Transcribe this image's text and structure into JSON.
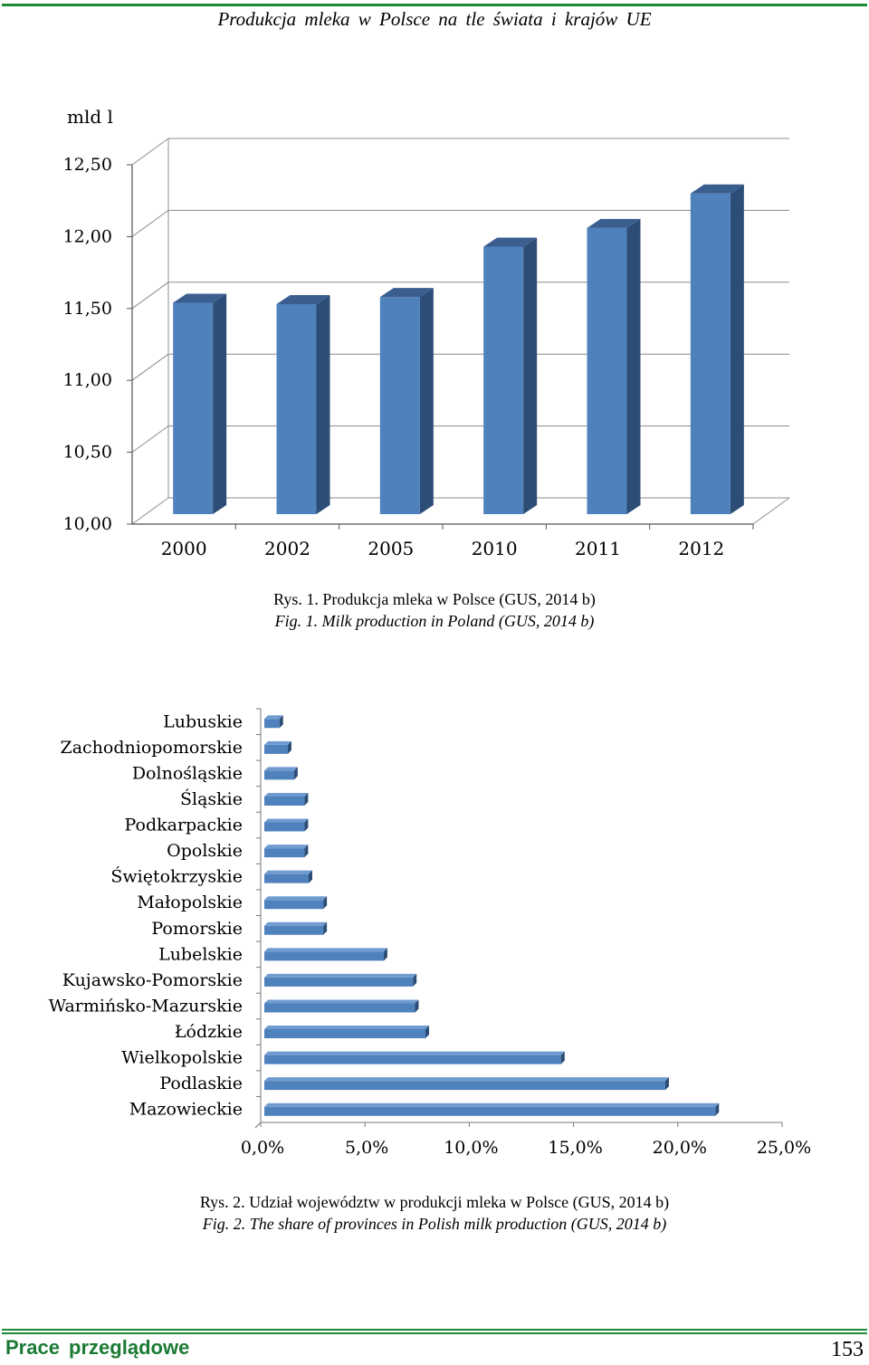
{
  "page": {
    "header": "Produkcja mleka w Polsce na tle świata i krajów UE",
    "footer_left": "Prace przeglądowe",
    "page_number": "153",
    "accent_color": "#1f8a3a"
  },
  "figures": {
    "fig1": {
      "caption_pl": "Rys. 1. Produkcja mleka w Polsce (GUS, 2014 b)",
      "caption_en": "Fig. 1. Milk production in Poland (GUS, 2014 b)"
    },
    "fig2": {
      "caption_pl": "Rys. 2. Udział województw w produkcji mleka w Polsce (GUS, 2014 b)",
      "caption_en": "Fig. 2. The share of provinces in Polish milk production (GUS, 2014 b)"
    }
  },
  "chart_data": [
    {
      "type": "bar",
      "orientation": "vertical",
      "style": "3d",
      "ylabel": "mld l",
      "categories": [
        "2000",
        "2002",
        "2005",
        "2010",
        "2011",
        "2012"
      ],
      "values": [
        11.54,
        11.53,
        11.58,
        11.93,
        12.06,
        12.3
      ],
      "ylim": [
        10.0,
        12.5
      ],
      "yticks": [
        "10,00",
        "10,50",
        "11,00",
        "11,50",
        "12,00",
        "12,50"
      ],
      "ytick_values": [
        10.0,
        10.5,
        11.0,
        11.5,
        12.0,
        12.5
      ],
      "grid": true,
      "bar_color": "#4f81bd",
      "bar_side_color": "#2c4d75",
      "bar_top_color": "#3a5f8f"
    },
    {
      "type": "bar",
      "orientation": "horizontal",
      "style": "3d",
      "categories": [
        "Lubuskie",
        "Zachodniopomorskie",
        "Dolnośląskie",
        "Śląskie",
        "Podkarpackie",
        "Opolskie",
        "Świętokrzyskie",
        "Małopolskie",
        "Pomorskie",
        "Lubelskie",
        "Kujawsko-Pomorskie",
        "Warmińsko-Mazurskie",
        "Łódzkie",
        "Wielkopolskie",
        "Podlaskie",
        "Mazowieckie"
      ],
      "values": [
        0.9,
        1.3,
        1.6,
        2.1,
        2.1,
        2.1,
        2.3,
        3.0,
        3.0,
        5.9,
        7.3,
        7.4,
        7.9,
        14.4,
        19.4,
        21.8
      ],
      "xlim": [
        0,
        25
      ],
      "xticks": [
        "0,0%",
        "5,0%",
        "10,0%",
        "15,0%",
        "20,0%",
        "25,0%"
      ],
      "xtick_values": [
        0,
        5,
        10,
        15,
        20,
        25
      ],
      "grid": false,
      "bar_color": "#4f81bd",
      "bar_side_color": "#2c4d75"
    }
  ]
}
